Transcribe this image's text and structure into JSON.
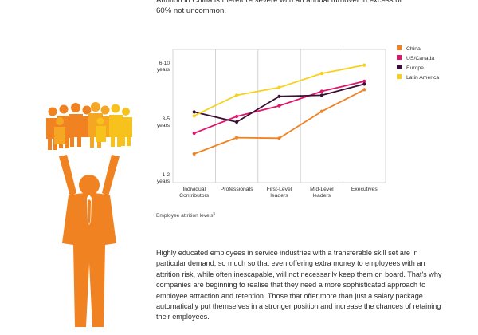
{
  "intro_text": "Attrition in China is therefore severe with an annual turnover in excess of 60% not uncommon.",
  "caption": "Employee attrition levels",
  "caption_sup": "5",
  "body_text": "Highly educated employees in service industries with a transferable skill set are in particular demand, so much so that even offering extra money to employees with an attrition risk, while often inescapable, will not necessarily keep them on board. That's why companies are beginning to realise that they need a more sophisticated approach to employee attraction and retention. Those that offer more than just a salary package automatically put themselves in a stronger position and increase the chances of retaining their employees.",
  "illustration": {
    "color": "#f08221",
    "crowd_colors": [
      "#f08221",
      "#f5a623",
      "#f7c21b"
    ]
  },
  "chart_data": {
    "type": "line",
    "categories": [
      [
        "Individual",
        "Contributors"
      ],
      [
        "Professionals"
      ],
      [
        "First-Level",
        "leaders"
      ],
      [
        "Mid-Level",
        "leaders"
      ],
      [
        "Executives"
      ]
    ],
    "y_ticks": [
      {
        "value": 1,
        "lines": [
          "1-2",
          "years"
        ]
      },
      {
        "value": 2,
        "lines": [
          "3-5",
          "years"
        ]
      },
      {
        "value": 3,
        "lines": [
          "6-10",
          "years"
        ]
      }
    ],
    "ylim": [
      1,
      3
    ],
    "series": [
      {
        "name": "China",
        "color": "#f08221",
        "values": [
          1.43,
          1.72,
          1.71,
          2.19,
          2.58
        ]
      },
      {
        "name": "US/Canada",
        "color": "#e0156c",
        "values": [
          1.8,
          2.1,
          2.29,
          2.55,
          2.73
        ]
      },
      {
        "name": "Europe",
        "color": "#3b0f35",
        "values": [
          2.18,
          2.0,
          2.46,
          2.48,
          2.68
        ]
      },
      {
        "name": "Latin America",
        "color": "#f7d11d",
        "values": [
          2.11,
          2.48,
          2.62,
          2.87,
          3.02
        ]
      }
    ]
  }
}
